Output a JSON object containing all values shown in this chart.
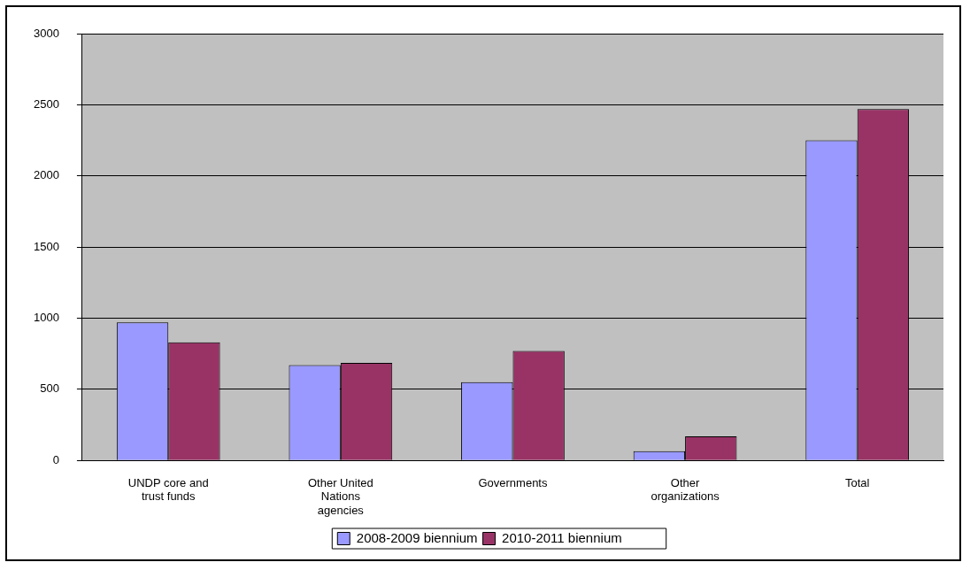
{
  "chart_data": {
    "type": "bar",
    "categories": [
      "UNDP core and trust funds",
      "Other United Nations agencies",
      "Governments",
      "Other organizations",
      "Total"
    ],
    "series": [
      {
        "name": "2008-2009 biennium",
        "color": "#9999ff",
        "values": [
          970,
          670,
          550,
          65,
          2250
        ]
      },
      {
        "name": "2010-2011 biennium",
        "color": "#993366",
        "values": [
          830,
          685,
          770,
          170,
          2470
        ]
      }
    ],
    "ylim": [
      0,
      3000
    ],
    "yticks": [
      0,
      500,
      1000,
      1500,
      2000,
      2500,
      3000
    ],
    "grid": "y",
    "legend": "bottom"
  }
}
